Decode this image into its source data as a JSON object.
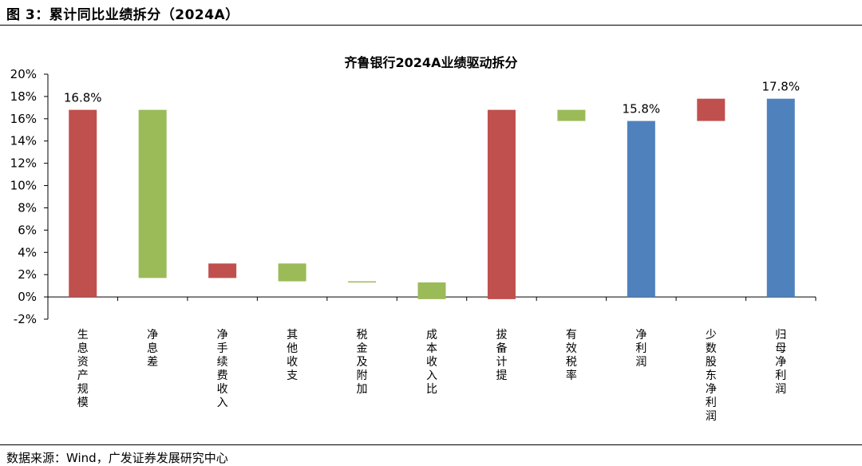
{
  "figure": {
    "header": "图 3：累计同比业绩拆分（2024A）",
    "source": "数据来源：Wind，广发证券发展研究中心"
  },
  "colors": {
    "positive": "#c0504d",
    "negative": "#9bbb59",
    "total": "#4f81bd"
  },
  "chart_data": {
    "type": "waterfall",
    "title": "齐鲁银行2024A业绩驱动拆分",
    "xlabel": "",
    "ylabel": "",
    "ylim": [
      -2,
      20
    ],
    "ytick_step": 2,
    "yticks": [
      "-2%",
      "0%",
      "2%",
      "4%",
      "6%",
      "8%",
      "10%",
      "12%",
      "14%",
      "16%",
      "18%",
      "20%"
    ],
    "grid": false,
    "legend": "none",
    "bars": [
      {
        "category": "生息资产规模",
        "start": 0,
        "end": 16.8,
        "kind": "positive",
        "label": "16.8%"
      },
      {
        "category": "净息差",
        "start": 16.8,
        "end": 1.7,
        "kind": "negative",
        "label": ""
      },
      {
        "category": "净手续费收入",
        "start": 1.7,
        "end": 3.0,
        "kind": "positive",
        "label": ""
      },
      {
        "category": "其他收支",
        "start": 3.0,
        "end": 1.4,
        "kind": "negative",
        "label": ""
      },
      {
        "category": "税金及附加",
        "start": 1.4,
        "end": 1.3,
        "kind": "negative",
        "label": ""
      },
      {
        "category": "成本收入比",
        "start": 1.3,
        "end": -0.2,
        "kind": "negative",
        "label": ""
      },
      {
        "category": "拔备计提",
        "start": -0.2,
        "end": 16.8,
        "kind": "positive",
        "label": ""
      },
      {
        "category": "有效税率",
        "start": 16.8,
        "end": 15.8,
        "kind": "negative",
        "label": ""
      },
      {
        "category": "净利润",
        "start": 0,
        "end": 15.8,
        "kind": "total",
        "label": "15.8%"
      },
      {
        "category": "少数股东净利润",
        "start": 15.8,
        "end": 17.8,
        "kind": "positive",
        "label": ""
      },
      {
        "category": "归母净利润",
        "start": 0,
        "end": 17.8,
        "kind": "total",
        "label": "17.8%"
      }
    ]
  }
}
